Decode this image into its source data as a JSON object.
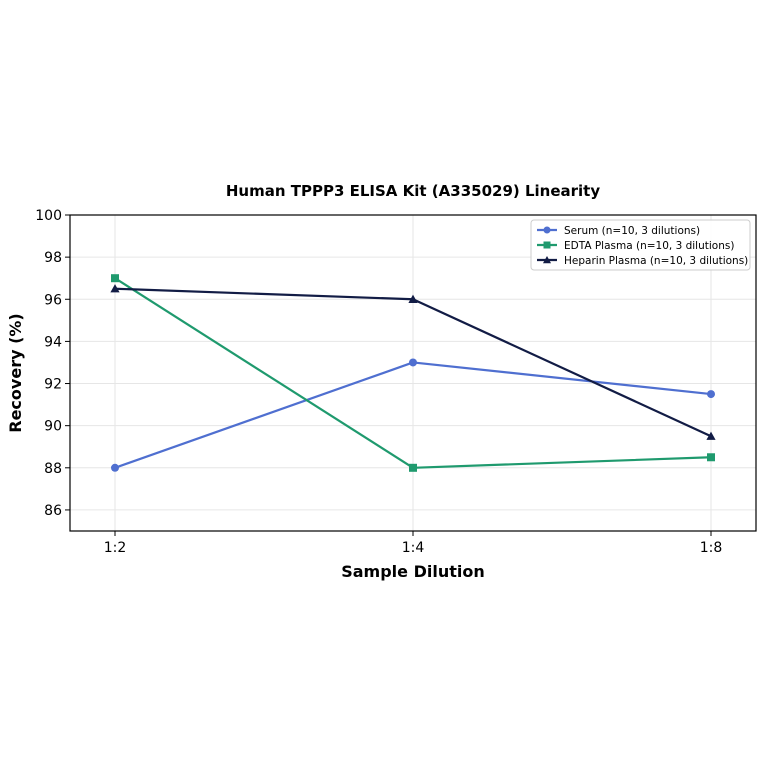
{
  "chart_data": {
    "type": "line",
    "title": "Human TPPP3 ELISA Kit (A335029) Linearity",
    "xlabel": "Sample Dilution",
    "ylabel": "Recovery (%)",
    "categories": [
      "1:2",
      "1:4",
      "1:8"
    ],
    "ylim": [
      85,
      100
    ],
    "yticks": [
      86,
      88,
      90,
      92,
      94,
      96,
      98,
      100
    ],
    "grid": true,
    "legend_position": "top-right",
    "series": [
      {
        "name": "Serum (n=10, 3 dilutions)",
        "values": [
          88.0,
          93.0,
          91.5
        ],
        "color": "#4f6fd0",
        "marker": "circle"
      },
      {
        "name": "EDTA Plasma (n=10, 3 dilutions)",
        "values": [
          97.0,
          88.0,
          88.5
        ],
        "color": "#1f9a6e",
        "marker": "square"
      },
      {
        "name": "Heparin Plasma (n=10, 3 dilutions)",
        "values": [
          96.5,
          96.0,
          89.5
        ],
        "color": "#121c45",
        "marker": "triangle"
      }
    ]
  }
}
